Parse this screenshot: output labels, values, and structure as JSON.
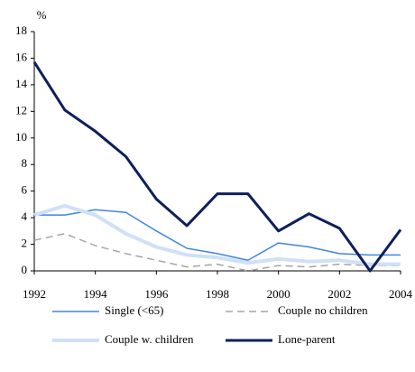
{
  "chart_data": {
    "type": "line",
    "ylabel": "%",
    "x": [
      1992,
      1993,
      1994,
      1995,
      1996,
      1997,
      1998,
      1999,
      2000,
      2001,
      2002,
      2003,
      2004
    ],
    "xlim": [
      1992,
      2004
    ],
    "xticks": [
      1992,
      1994,
      1996,
      1998,
      2000,
      2002,
      2004
    ],
    "ylim": [
      0,
      18
    ],
    "yticks": [
      0,
      2,
      4,
      6,
      8,
      10,
      12,
      14,
      16,
      18
    ],
    "grid": false,
    "legend": "bottom",
    "series": [
      {
        "name": "Single (<65)",
        "color": "#3f86e0",
        "width": 1.5,
        "dash": false,
        "values": [
          4.2,
          4.2,
          4.6,
          4.4,
          3.0,
          1.7,
          1.3,
          0.8,
          2.1,
          1.8,
          1.3,
          1.2,
          1.2
        ]
      },
      {
        "name": "Couple no children",
        "color": "#a6a6a6",
        "width": 1.5,
        "dash": true,
        "values": [
          2.3,
          2.8,
          1.9,
          1.3,
          0.8,
          0.3,
          0.5,
          0.0,
          0.4,
          0.3,
          0.5,
          0.4,
          0.4
        ]
      },
      {
        "name": "Couple w. children",
        "color": "#cfe0f7",
        "width": 4,
        "dash": false,
        "values": [
          4.2,
          4.9,
          4.2,
          2.8,
          1.8,
          1.2,
          1.0,
          0.6,
          0.9,
          0.7,
          0.8,
          0.5,
          0.5
        ]
      },
      {
        "name": "Lone-parent",
        "color": "#0d1f5c",
        "width": 3,
        "dash": false,
        "values": [
          15.7,
          12.1,
          10.5,
          8.6,
          5.4,
          3.4,
          5.8,
          5.8,
          3.0,
          4.3,
          3.2,
          0.0,
          3.1
        ]
      }
    ]
  }
}
